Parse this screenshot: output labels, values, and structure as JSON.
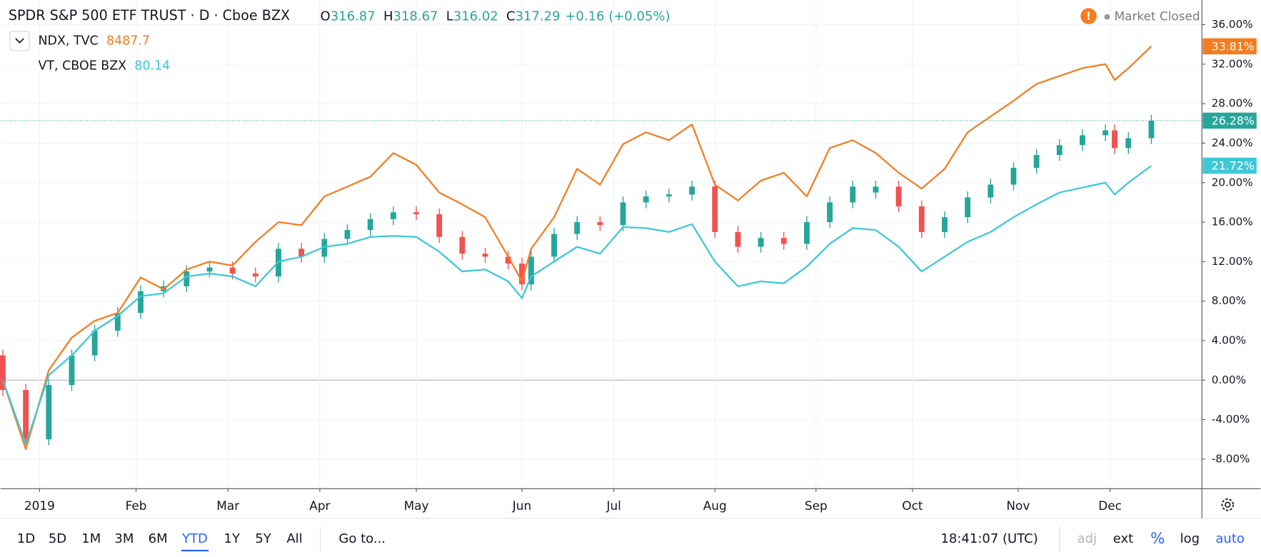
{
  "header": {
    "title": "SPDR S&P 500 ETF TRUST · D · Cboe BZX",
    "ohlc": [
      {
        "label": "O",
        "value": "316.87"
      },
      {
        "label": "H",
        "value": "318.67"
      },
      {
        "label": "L",
        "value": "316.02"
      },
      {
        "label": "C",
        "value": "317.29"
      }
    ],
    "change": "+0.16 (+0.05%)",
    "status": "Market Closed"
  },
  "chart_data": {
    "type": "candlestick",
    "x": [
      0,
      5,
      10,
      15,
      20,
      25,
      30,
      35,
      40,
      45,
      50,
      55,
      60,
      65,
      70,
      75,
      80,
      85,
      90,
      95,
      100,
      105,
      110,
      113,
      115,
      120,
      125,
      130,
      135,
      140,
      145,
      150,
      155,
      160,
      165,
      170,
      175,
      180,
      185,
      190,
      195,
      200,
      205,
      210,
      215,
      220,
      225,
      230,
      235,
      240,
      242,
      245,
      250
    ],
    "xlim": [
      0,
      261
    ],
    "xticks": [
      {
        "value": 8,
        "label": "2019"
      },
      {
        "value": 29,
        "label": "Feb"
      },
      {
        "value": 49,
        "label": "Mar"
      },
      {
        "value": 69,
        "label": "Apr"
      },
      {
        "value": 90,
        "label": "May"
      },
      {
        "value": 113,
        "label": "Jun"
      },
      {
        "value": 133,
        "label": "Jul"
      },
      {
        "value": 155,
        "label": "Aug"
      },
      {
        "value": 177,
        "label": "Sep"
      },
      {
        "value": 198,
        "label": "Oct"
      },
      {
        "value": 221,
        "label": "Nov"
      },
      {
        "value": 241,
        "label": "Dec"
      }
    ],
    "ylim": [
      -11,
      38.5
    ],
    "yticks": [
      {
        "value": -8,
        "label": "-8.00%"
      },
      {
        "value": -4,
        "label": "-4.00%"
      },
      {
        "value": 0,
        "label": "0.00%"
      },
      {
        "value": 4,
        "label": "4.00%"
      },
      {
        "value": 8,
        "label": "8.00%"
      },
      {
        "value": 12,
        "label": "12.00%"
      },
      {
        "value": 16,
        "label": "16.00%"
      },
      {
        "value": 20,
        "label": "20.00%"
      },
      {
        "value": 24,
        "label": "24.00%"
      },
      {
        "value": 28,
        "label": "28.00%"
      },
      {
        "value": 32,
        "label": "32.00%"
      },
      {
        "value": 36,
        "label": "36.00%"
      }
    ],
    "grid": true,
    "up_color": "#26a69a",
    "down_color": "#ef5350",
    "ohlc": {
      "open": [
        2.5,
        -1,
        -6,
        -0.5,
        2.5,
        5,
        6.8,
        9,
        9.5,
        11,
        11.4,
        10.8,
        10.5,
        13.3,
        12.5,
        14.3,
        15.2,
        16.3,
        17,
        16.8,
        14.5,
        12.8,
        12.5,
        11.8,
        9.7,
        12.5,
        14.8,
        16,
        15.7,
        18,
        18.6,
        18.8,
        19.6,
        15,
        13.5,
        14.4,
        13.8,
        16,
        18,
        19.0,
        19.6,
        17.6,
        15,
        16.5,
        18.5,
        19.8,
        21.5,
        22.8,
        23.8,
        24.8,
        25.3,
        23.5,
        24.5
      ],
      "high": [
        3.1,
        -0.4,
        0.1,
        3.1,
        5.6,
        7.4,
        9.6,
        10.1,
        11.6,
        12,
        12,
        11.4,
        13.9,
        13.9,
        14.9,
        15.8,
        16.9,
        17.6,
        17.6,
        17.4,
        15.1,
        13.4,
        13.1,
        12.4,
        13.1,
        15.4,
        16.6,
        16.6,
        18.6,
        19.2,
        19.4,
        20.2,
        20.2,
        15.6,
        15,
        15,
        16.6,
        18.6,
        20.2,
        20.2,
        20.2,
        18.2,
        17.1,
        19.1,
        20.4,
        22.1,
        23.4,
        24.4,
        25.4,
        25.9,
        25.9,
        25.1,
        26.88
      ],
      "low": [
        -1.6,
        -6.6,
        -6.6,
        -1.1,
        1.9,
        4.4,
        6.2,
        8.4,
        8.9,
        10.4,
        10.2,
        9.9,
        9.9,
        11.9,
        11.9,
        13.7,
        14.6,
        15.7,
        16.2,
        13.9,
        12.2,
        11.9,
        11.2,
        9.1,
        9.1,
        11.9,
        14.2,
        15.1,
        15.1,
        17.4,
        18,
        18.2,
        14.4,
        12.9,
        12.9,
        13.2,
        13.2,
        15.4,
        17.4,
        18.4,
        17,
        14.4,
        14.4,
        15.9,
        17.9,
        19.2,
        20.9,
        22.2,
        23.2,
        24.2,
        22.9,
        22.9,
        23.9
      ],
      "close": [
        -1,
        -6,
        -0.5,
        2.5,
        5,
        6.8,
        9,
        9.5,
        11,
        11.4,
        10.8,
        10.5,
        13.3,
        12.5,
        14.3,
        15.2,
        16.3,
        17,
        16.8,
        14.5,
        12.8,
        12.5,
        11.8,
        9.7,
        12.5,
        14.8,
        16,
        15.7,
        18,
        18.6,
        18.8,
        19.6,
        15,
        13.5,
        14.4,
        13.8,
        16,
        18,
        19.6,
        19.6,
        17.6,
        15,
        16.5,
        18.5,
        19.8,
        21.5,
        22.8,
        23.8,
        24.8,
        25.3,
        23.5,
        24.5,
        26.28
      ]
    },
    "last_label": "26.28%",
    "series": [
      {
        "name": "NDX, TVC",
        "color": "#f57c1f",
        "legend_value": "8487.7",
        "last_label": "33.81%",
        "values": [
          0,
          -7,
          1,
          4.3,
          6,
          6.8,
          10.4,
          9.2,
          11.2,
          12,
          11.6,
          14,
          16,
          15.7,
          18.6,
          19.6,
          20.6,
          23,
          21.8,
          19,
          17.8,
          16.5,
          12.5,
          10,
          13.3,
          16.5,
          21.4,
          19.8,
          23.9,
          25.1,
          24.3,
          25.9,
          19.8,
          18.2,
          20.2,
          21,
          18.6,
          23.5,
          24.3,
          23,
          21,
          19.4,
          21.4,
          25.1,
          26.7,
          28.3,
          30,
          30.8,
          31.6,
          32,
          30.4,
          31.6,
          33.81
        ]
      },
      {
        "name": "VT, CBOE BZX",
        "color": "#3cc8d6",
        "legend_value": "80.14",
        "last_label": "21.72%",
        "values": [
          0,
          -6.5,
          0.5,
          2.5,
          5,
          6.5,
          8.5,
          8.8,
          10.5,
          10.8,
          10.5,
          9.5,
          12,
          12.5,
          13.5,
          13.8,
          14.5,
          14.6,
          14.5,
          13,
          11,
          11.2,
          10,
          8.3,
          10.5,
          12,
          13.5,
          12.8,
          15.5,
          15.4,
          15,
          15.8,
          12,
          9.5,
          10,
          9.8,
          11.5,
          13.8,
          15.4,
          15.2,
          13.5,
          11,
          12.5,
          14,
          15,
          16.5,
          17.8,
          19,
          19.5,
          20,
          18.8,
          20,
          21.72
        ]
      }
    ]
  },
  "bottom_bar": {
    "ranges": [
      "1D",
      "5D",
      "1M",
      "3M",
      "6M",
      "YTD",
      "1Y",
      "5Y",
      "All"
    ],
    "active_range": 5,
    "goto": "Go to...",
    "time": "18:41:07 (UTC)",
    "options": [
      "adj",
      "ext",
      "%",
      "log",
      "auto"
    ],
    "active_options": [
      2,
      4
    ],
    "disabled_options": [
      0
    ]
  }
}
